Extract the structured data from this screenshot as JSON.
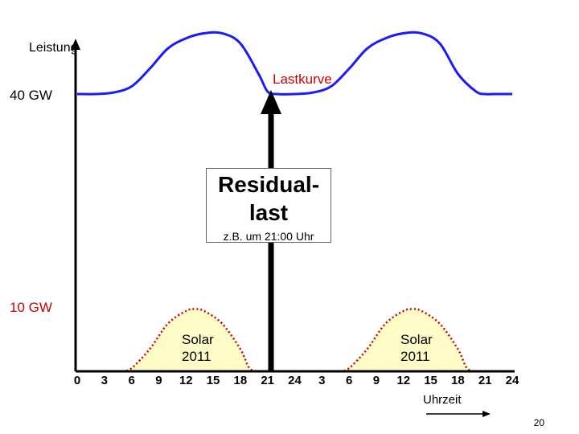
{
  "chart_data": {
    "type": "area",
    "ylabel": "Leistung",
    "xlabel": "Uhrzeit",
    "x_tick_labels": [
      "0",
      "3",
      "6",
      "9",
      "12",
      "15",
      "18",
      "21",
      "24",
      "3",
      "6",
      "9",
      "12",
      "15",
      "18",
      "21",
      "24"
    ],
    "x_range_hours": [
      0,
      48
    ],
    "y_markers": [
      {
        "label": "40 GW",
        "value": 40,
        "color": "#000000"
      },
      {
        "label": "10 GW",
        "value": 10,
        "color": "#cc0000"
      }
    ],
    "series": [
      {
        "name": "Lastkurve",
        "color": "#1a1aff",
        "x": [
          0,
          2,
          4,
          6,
          8,
          10,
          12,
          14,
          16,
          18,
          20,
          21,
          22,
          24,
          26,
          28,
          30,
          32,
          34,
          36,
          38,
          40,
          42,
          44,
          45,
          46,
          48
        ],
        "y": [
          40,
          40,
          40.3,
          41.5,
          45,
          49,
          51,
          52,
          52,
          50,
          44,
          40.5,
          40,
          40,
          40.3,
          41.5,
          45,
          49,
          51,
          52,
          52,
          50,
          44,
          40.5,
          40,
          40,
          40
        ]
      },
      {
        "name": "Solar 2011",
        "color": "#cc0000",
        "fill": "#fffcc8",
        "x": [
          5,
          6,
          8,
          10,
          12,
          13,
          14,
          16,
          18,
          19,
          29,
          30,
          32,
          34,
          36,
          37,
          38,
          40,
          42,
          43
        ],
        "y": [
          0,
          0.5,
          3.5,
          7.5,
          9.5,
          9.8,
          9.5,
          7.5,
          3.5,
          0.5,
          0,
          0.5,
          3.5,
          7.5,
          9.5,
          9.8,
          9.5,
          7.5,
          3.5,
          0.5
        ]
      }
    ],
    "annotations": [
      {
        "text": "Lastkurve",
        "color": "#cc0000"
      },
      {
        "text": "Solar 2011"
      },
      {
        "text": "Solar 2011"
      }
    ],
    "residual_box": {
      "title_line1": "Residual-",
      "title_line2": "last",
      "note": "z.B. um 21:00 Uhr",
      "hour": 21
    },
    "arrow_hour": 21
  },
  "page_number": "20"
}
